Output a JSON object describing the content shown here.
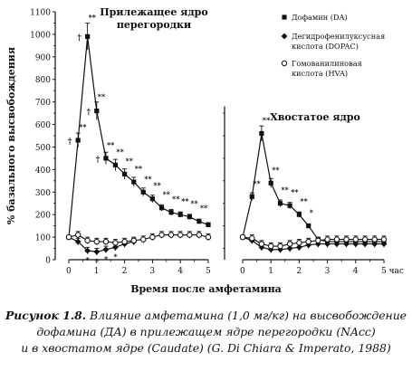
{
  "chart_data": [
    {
      "panel": "left",
      "type": "line",
      "title": "Прилежащее ядро\nперегородки",
      "ylabel": "% базального высвобождения",
      "ylim": [
        0,
        1100
      ],
      "yticks": [
        0,
        100,
        200,
        300,
        400,
        500,
        600,
        700,
        800,
        900,
        1000,
        1100
      ],
      "xlim": [
        -0.25,
        5
      ],
      "xticks": [
        0,
        1,
        2,
        3,
        4,
        5
      ],
      "series": [
        {
          "name": "Дофамин (DA)",
          "marker": "square",
          "x": [
            0,
            0.33,
            0.67,
            1.0,
            1.33,
            1.67,
            2.0,
            2.33,
            2.67,
            3.0,
            3.33,
            3.67,
            4.0,
            4.33,
            4.67,
            5.0
          ],
          "y": [
            100,
            530,
            990,
            660,
            450,
            420,
            380,
            345,
            300,
            270,
            230,
            210,
            200,
            190,
            170,
            155
          ],
          "markers": [
            "",
            "**",
            "**",
            "**",
            "**",
            "**",
            "**",
            "**",
            "**",
            "**",
            "**",
            "**",
            "**",
            "**",
            "**",
            ""
          ]
        },
        {
          "name": "Дегидрофенилуксусная кислота (DOPAC)",
          "marker": "diamond",
          "x": [
            0,
            0.33,
            0.67,
            1.0,
            1.33,
            1.67,
            2.0,
            2.33
          ],
          "y": [
            100,
            80,
            40,
            35,
            45,
            55,
            70,
            80
          ],
          "markers": [
            "",
            "",
            "*",
            "*",
            "*",
            "*",
            "",
            ""
          ]
        },
        {
          "name": "Гомованилиновая кислота (HVA)",
          "marker": "circle",
          "x": [
            0,
            0.33,
            0.67,
            1.0,
            1.33,
            1.67,
            2.0,
            2.33,
            2.67,
            3.0,
            3.33,
            3.67,
            4.0,
            4.33,
            4.67,
            5.0
          ],
          "y": [
            100,
            110,
            85,
            80,
            80,
            75,
            80,
            85,
            90,
            100,
            110,
            110,
            110,
            110,
            110,
            100
          ],
          "markers": []
        }
      ],
      "daggers": [
        {
          "x": 0.33,
          "y": 530
        },
        {
          "x": 0.67,
          "y": 990
        },
        {
          "x": 1.0,
          "y": 660
        },
        {
          "x": 1.33,
          "y": 450
        }
      ]
    },
    {
      "panel": "right",
      "type": "line",
      "title": "Хвостатое ядро",
      "ylim": [
        0,
        1100
      ],
      "xlim": [
        -0.25,
        5
      ],
      "xticks": [
        0,
        1,
        2,
        3,
        4,
        5
      ],
      "xtick_suffix": "час",
      "series": [
        {
          "name": "Дофамин (DA)",
          "marker": "square",
          "x": [
            0,
            0.33,
            0.67,
            1.0,
            1.33,
            1.67,
            2.0,
            2.33,
            2.67,
            3.0,
            3.33,
            3.67,
            4.0,
            4.33,
            4.67,
            5.0
          ],
          "y": [
            100,
            280,
            560,
            340,
            250,
            240,
            200,
            150,
            90,
            80,
            80,
            80,
            80,
            80,
            80,
            80
          ],
          "markers": [
            "",
            "**",
            "**",
            "**",
            "**",
            "**",
            "**",
            "*",
            "",
            "",
            "",
            "",
            "",
            "",
            "",
            ""
          ]
        },
        {
          "name": "Дегидрофенилуксусная кислота (DOPAC)",
          "marker": "diamond",
          "x": [
            0,
            0.33,
            0.67,
            1.0,
            1.33,
            1.67,
            2.0,
            2.33,
            2.67,
            3.0,
            3.33,
            3.67,
            4.0,
            4.33,
            4.67,
            5.0
          ],
          "y": [
            100,
            85,
            55,
            45,
            45,
            50,
            55,
            65,
            70,
            70,
            70,
            70,
            70,
            70,
            70,
            70
          ],
          "markers": []
        },
        {
          "name": "Гомованилиновая кислота (HVA)",
          "marker": "circle",
          "x": [
            0,
            0.33,
            0.67,
            1.0,
            1.33,
            1.67,
            2.0,
            2.33,
            2.67,
            3.0,
            3.33,
            3.67,
            4.0,
            4.33,
            4.67,
            5.0
          ],
          "y": [
            100,
            95,
            70,
            60,
            60,
            70,
            75,
            80,
            85,
            90,
            90,
            90,
            90,
            90,
            90,
            90
          ],
          "markers": []
        }
      ]
    }
  ],
  "legend": [
    {
      "marker": "square",
      "text": "Дофамин (DA)"
    },
    {
      "marker": "diamond",
      "text": "Дегидрофенилуксусная\nкислота (DOPAC)"
    },
    {
      "marker": "circle",
      "text": "Гомованилиновая\nкислота (HVA)"
    }
  ],
  "xlabel": "Время после амфетамина",
  "caption": {
    "label": "Рисунок 1.8.",
    "line1": " Влияние амфетамина (1,0 мг/кг) на высвобождение",
    "line2": "дофамина (ДА) в прилежащем ядре перегородки (NAcc)",
    "line3": "и в хвостатом ядре (Caudate) (G. Di Chiara & Imperato, 1988)"
  }
}
